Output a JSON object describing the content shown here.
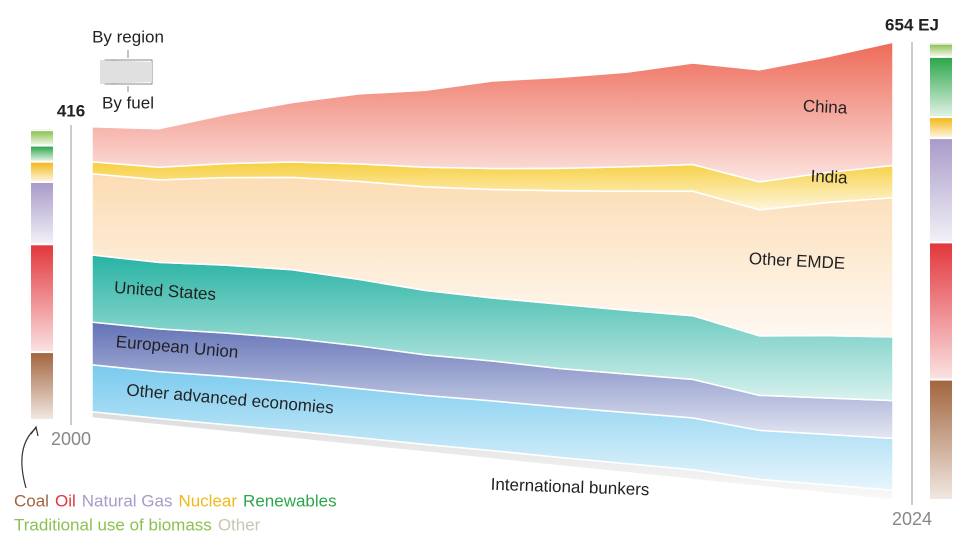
{
  "chart_data": {
    "type": "stream",
    "toggle": [
      "By region",
      "By fuel"
    ],
    "x": [
      2000,
      2002,
      2004,
      2006,
      2008,
      2010,
      2012,
      2014,
      2016,
      2018,
      2020,
      2022,
      2024
    ],
    "xlim": [
      2000,
      2024
    ],
    "xticks": [
      2000,
      2024
    ],
    "series": [
      {
        "name": "China",
        "color": "#ee6a58",
        "values": [
          50,
          55,
          70,
          85,
          100,
          110,
          125,
          130,
          135,
          145,
          160,
          165,
          176
        ]
      },
      {
        "name": "India",
        "color": "#f7cf3f",
        "values": [
          17,
          18,
          20,
          22,
          25,
          28,
          30,
          32,
          35,
          38,
          40,
          43,
          46
        ]
      },
      {
        "name": "Other EMDE",
        "color": "#fcdcb4",
        "values": [
          116,
          118,
          125,
          132,
          140,
          148,
          155,
          162,
          170,
          178,
          180,
          190,
          199
        ]
      },
      {
        "name": "United States",
        "color": "#27b3a3",
        "values": [
          96,
          95,
          97,
          98,
          95,
          92,
          90,
          92,
          91,
          91,
          85,
          89,
          91
        ]
      },
      {
        "name": "European Union",
        "color": "#6272b6",
        "values": [
          61,
          61,
          62,
          62,
          61,
          58,
          57,
          55,
          55,
          55,
          50,
          52,
          54
        ]
      },
      {
        "name": "Other advanced economies",
        "color": "#79caee",
        "values": [
          67,
          67,
          69,
          70,
          70,
          70,
          71,
          72,
          73,
          74,
          70,
          72,
          74
        ]
      },
      {
        "name": "International bunkers",
        "color": "#dcdcdc",
        "values": [
          9,
          9,
          10,
          11,
          11,
          11,
          12,
          12,
          13,
          14,
          10,
          12,
          14
        ]
      }
    ],
    "totals": [
      {
        "value": 416,
        "label": "416"
      },
      {
        "value": 654,
        "label": "654 EJ"
      }
    ],
    "fuels": [
      {
        "name": "Coal",
        "color": "#a2653e",
        "values": [
          97,
          172
        ]
      },
      {
        "name": "Oil",
        "color": "#e2373d",
        "values": [
          154,
          196
        ]
      },
      {
        "name": "Natural Gas",
        "color": "#a99bc9",
        "values": [
          89,
          149
        ]
      },
      {
        "name": "Nuclear",
        "color": "#f3b81a",
        "values": [
          29,
          30
        ]
      },
      {
        "name": "Renewables",
        "color": "#2ca64b",
        "values": [
          23,
          86
        ]
      },
      {
        "name": "Traditional use of biomass",
        "color": "#8cc152",
        "values": [
          22,
          19
        ]
      },
      {
        "name": "Other",
        "color": "#c9c7b3",
        "values": [
          2,
          2
        ]
      }
    ]
  }
}
